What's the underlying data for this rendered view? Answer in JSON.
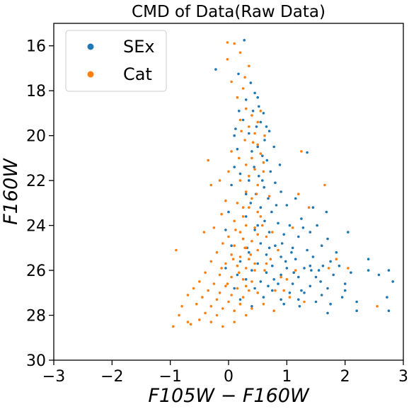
{
  "chart_data": {
    "type": "scatter",
    "title": "CMD of Data(Raw Data)",
    "xlabel": "F105W − F160W",
    "ylabel": "F160W",
    "xlim": [
      -3,
      3
    ],
    "ylim": [
      30,
      15
    ],
    "y_inverted": true,
    "xticks": [
      "−3",
      "−2",
      "−1",
      "0",
      "1",
      "2",
      "3"
    ],
    "xtick_values": [
      -3,
      -2,
      -1,
      0,
      1,
      2,
      3
    ],
    "yticks": [
      "16",
      "18",
      "20",
      "22",
      "24",
      "26",
      "28",
      "30"
    ],
    "ytick_values": [
      16,
      18,
      20,
      22,
      24,
      26,
      28,
      30
    ],
    "grid": false,
    "legend_position": "upper-left",
    "series": [
      {
        "name": "SEx",
        "color": "#1f77b4",
        "points": [
          [
            0.27,
            15.75
          ],
          [
            -0.22,
            17.05
          ],
          [
            0.17,
            17.25
          ],
          [
            0.38,
            17.65
          ],
          [
            0.45,
            18.1
          ],
          [
            0.3,
            18.4
          ],
          [
            0.42,
            18.9
          ],
          [
            0.52,
            18.7
          ],
          [
            0.6,
            19.0
          ],
          [
            0.55,
            19.4
          ],
          [
            0.48,
            19.6
          ],
          [
            0.35,
            19.9
          ],
          [
            0.62,
            20.2
          ],
          [
            0.7,
            19.8
          ],
          [
            0.5,
            20.5
          ],
          [
            0.4,
            20.7
          ],
          [
            0.58,
            20.9
          ],
          [
            0.66,
            21.1
          ],
          [
            0.44,
            21.4
          ],
          [
            0.72,
            21.6
          ],
          [
            0.52,
            21.8
          ],
          [
            0.35,
            22.0
          ],
          [
            0.61,
            22.3
          ],
          [
            0.8,
            22.1
          ],
          [
            0.47,
            22.6
          ],
          [
            0.68,
            22.8
          ],
          [
            0.9,
            22.5
          ],
          [
            0.38,
            23.0
          ],
          [
            0.55,
            23.2
          ],
          [
            0.74,
            23.4
          ],
          [
            1.0,
            23.1
          ],
          [
            1.15,
            22.8
          ],
          [
            0.3,
            23.6
          ],
          [
            0.62,
            23.8
          ],
          [
            0.85,
            23.9
          ],
          [
            1.05,
            24.0
          ],
          [
            1.25,
            23.7
          ],
          [
            0.45,
            24.2
          ],
          [
            0.7,
            24.3
          ],
          [
            0.95,
            24.4
          ],
          [
            1.2,
            24.5
          ],
          [
            1.4,
            24.3
          ],
          [
            0.25,
            24.6
          ],
          [
            0.55,
            24.8
          ],
          [
            0.8,
            24.9
          ],
          [
            1.1,
            25.0
          ],
          [
            1.35,
            25.1
          ],
          [
            1.6,
            24.9
          ],
          [
            0.35,
            25.2
          ],
          [
            0.65,
            25.3
          ],
          [
            0.9,
            25.4
          ],
          [
            1.15,
            25.5
          ],
          [
            1.45,
            25.4
          ],
          [
            1.75,
            25.6
          ],
          [
            0.2,
            25.6
          ],
          [
            0.5,
            25.7
          ],
          [
            0.75,
            25.8
          ],
          [
            1.0,
            25.9
          ],
          [
            1.3,
            25.9
          ],
          [
            1.55,
            26.0
          ],
          [
            1.9,
            25.8
          ],
          [
            0.4,
            26.0
          ],
          [
            0.65,
            26.1
          ],
          [
            0.9,
            26.2
          ],
          [
            1.2,
            26.3
          ],
          [
            1.5,
            26.3
          ],
          [
            1.8,
            26.2
          ],
          [
            2.1,
            26.1
          ],
          [
            0.3,
            26.4
          ],
          [
            0.55,
            26.5
          ],
          [
            0.85,
            26.6
          ],
          [
            1.1,
            26.6
          ],
          [
            1.4,
            26.7
          ],
          [
            1.7,
            26.8
          ],
          [
            2.0,
            26.6
          ],
          [
            2.4,
            26.0
          ],
          [
            0.45,
            26.8
          ],
          [
            0.75,
            26.9
          ],
          [
            1.05,
            27.0
          ],
          [
            1.3,
            27.0
          ],
          [
            1.6,
            27.1
          ],
          [
            1.95,
            27.2
          ],
          [
            0.6,
            27.2
          ],
          [
            0.9,
            27.3
          ],
          [
            1.2,
            27.3
          ],
          [
            1.5,
            27.4
          ],
          [
            1.75,
            27.5
          ],
          [
            2.2,
            27.4
          ],
          [
            2.4,
            25.5
          ],
          [
            2.75,
            26.0
          ],
          [
            2.82,
            26.5
          ],
          [
            2.72,
            27.2
          ],
          [
            2.75,
            27.8
          ],
          [
            2.58,
            26.2
          ],
          [
            2.2,
            27.8
          ],
          [
            1.7,
            27.9
          ],
          [
            1.4,
            25.8
          ],
          [
            1.25,
            26.9
          ],
          [
            0.95,
            27.5
          ],
          [
            0.7,
            25.0
          ],
          [
            0.15,
            26.2
          ],
          [
            -0.05,
            25.9
          ],
          [
            0.05,
            24.9
          ],
          [
            0.1,
            26.8
          ],
          [
            0.2,
            27.3
          ],
          [
            0.5,
            24.0
          ],
          [
            0.3,
            22.6
          ],
          [
            0.2,
            21.7
          ],
          [
            0.15,
            20.6
          ],
          [
            0.1,
            21.4
          ],
          [
            0.78,
            20.5
          ],
          [
            0.88,
            21.3
          ],
          [
            1.35,
            20.75
          ],
          [
            1.45,
            23.2
          ],
          [
            1.52,
            24.0
          ],
          [
            1.7,
            24.6
          ],
          [
            1.85,
            25.2
          ],
          [
            2.05,
            24.3
          ],
          [
            1.62,
            25.8
          ],
          [
            2.0,
            26.9
          ],
          [
            0.0,
            23.4
          ],
          [
            -0.05,
            24.2
          ],
          [
            0.05,
            22.2
          ],
          [
            0.25,
            19.3
          ],
          [
            0.1,
            20.0
          ],
          [
            0.65,
            19.6
          ],
          [
            0.82,
            23.1
          ],
          [
            1.08,
            25.2
          ],
          [
            1.22,
            27.6
          ],
          [
            0.4,
            27.6
          ],
          [
            0.58,
            22.0
          ],
          [
            0.92,
            24.8
          ],
          [
            1.28,
            24.1
          ],
          [
            1.68,
            23.4
          ],
          [
            1.42,
            26.0
          ],
          [
            1.58,
            26.5
          ],
          [
            0.18,
            18.9
          ],
          [
            0.5,
            18.3
          ],
          [
            0.12,
            19.7
          ],
          [
            0.78,
            26.4
          ],
          [
            1.12,
            26.1
          ],
          [
            0.32,
            25.0
          ],
          [
            0.68,
            26.7
          ],
          [
            0.98,
            25.6
          ]
        ]
      },
      {
        "name": "Cat",
        "color": "#ff7f0e",
        "points": [
          [
            -0.02,
            15.85
          ],
          [
            0.1,
            15.9
          ],
          [
            -0.02,
            16.6
          ],
          [
            0.2,
            16.3
          ],
          [
            0.05,
            17.6
          ],
          [
            0.25,
            17.9
          ],
          [
            0.3,
            18.8
          ],
          [
            0.4,
            19.1
          ],
          [
            0.2,
            19.3
          ],
          [
            0.35,
            19.6
          ],
          [
            0.5,
            19.4
          ],
          [
            0.45,
            19.9
          ],
          [
            0.28,
            20.2
          ],
          [
            0.5,
            20.4
          ],
          [
            0.55,
            20.8
          ],
          [
            0.4,
            21.0
          ],
          [
            0.3,
            21.3
          ],
          [
            0.45,
            21.5
          ],
          [
            0.6,
            21.2
          ],
          [
            0.35,
            21.8
          ],
          [
            0.2,
            22.0
          ],
          [
            0.5,
            22.2
          ],
          [
            0.3,
            22.5
          ],
          [
            0.4,
            22.8
          ],
          [
            0.15,
            23.0
          ],
          [
            0.35,
            23.2
          ],
          [
            0.5,
            23.4
          ],
          [
            0.25,
            23.6
          ],
          [
            0.1,
            23.8
          ],
          [
            0.3,
            24.0
          ],
          [
            0.45,
            24.1
          ],
          [
            0.2,
            24.3
          ],
          [
            0.0,
            24.5
          ],
          [
            0.25,
            24.6
          ],
          [
            0.4,
            24.7
          ],
          [
            -0.1,
            24.8
          ],
          [
            0.1,
            24.9
          ],
          [
            0.3,
            25.0
          ],
          [
            0.5,
            25.1
          ],
          [
            -0.2,
            25.2
          ],
          [
            0.05,
            25.3
          ],
          [
            0.2,
            25.4
          ],
          [
            0.35,
            25.5
          ],
          [
            -0.3,
            25.6
          ],
          [
            -0.05,
            25.7
          ],
          [
            0.15,
            25.8
          ],
          [
            0.3,
            25.9
          ],
          [
            0.45,
            26.0
          ],
          [
            -0.4,
            26.1
          ],
          [
            -0.15,
            26.2
          ],
          [
            0.05,
            26.3
          ],
          [
            0.25,
            26.4
          ],
          [
            0.4,
            26.5
          ],
          [
            -0.5,
            26.5
          ],
          [
            -0.25,
            26.6
          ],
          [
            -0.05,
            26.7
          ],
          [
            0.15,
            26.8
          ],
          [
            0.35,
            26.9
          ],
          [
            -0.6,
            26.8
          ],
          [
            -0.35,
            26.9
          ],
          [
            -0.15,
            27.0
          ],
          [
            0.05,
            27.1
          ],
          [
            0.25,
            27.2
          ],
          [
            0.5,
            27.0
          ],
          [
            -0.7,
            27.1
          ],
          [
            -0.45,
            27.2
          ],
          [
            -0.2,
            27.3
          ],
          [
            0.0,
            27.4
          ],
          [
            0.2,
            27.5
          ],
          [
            -0.55,
            27.5
          ],
          [
            -0.3,
            27.6
          ],
          [
            -0.1,
            27.7
          ],
          [
            0.1,
            27.8
          ],
          [
            -0.4,
            27.9
          ],
          [
            -0.2,
            28.0
          ],
          [
            -0.5,
            28.2
          ],
          [
            -0.7,
            28.3
          ],
          [
            -0.95,
            28.5
          ],
          [
            -0.85,
            28.0
          ],
          [
            -0.8,
            27.6
          ],
          [
            -0.65,
            28.4
          ],
          [
            -0.3,
            28.3
          ],
          [
            -0.9,
            25.1
          ],
          [
            -0.42,
            24.3
          ],
          [
            -0.35,
            21.1
          ],
          [
            -0.3,
            22.2
          ],
          [
            -0.15,
            22.0
          ],
          [
            0.6,
            21.6
          ],
          [
            0.7,
            22.7
          ],
          [
            0.55,
            23.6
          ],
          [
            0.75,
            24.3
          ],
          [
            0.85,
            25.1
          ],
          [
            0.65,
            25.7
          ],
          [
            0.9,
            26.3
          ],
          [
            0.8,
            26.9
          ],
          [
            1.05,
            27.2
          ],
          [
            1.3,
            27.4
          ],
          [
            1.2,
            22.6
          ],
          [
            1.25,
            20.7
          ],
          [
            1.65,
            22.2
          ],
          [
            1.72,
            25.9
          ],
          [
            1.85,
            25.5
          ],
          [
            2.05,
            25.9
          ],
          [
            2.55,
            27.6
          ],
          [
            1.1,
            24.1
          ],
          [
            1.38,
            23.2
          ],
          [
            0.35,
            16.9
          ],
          [
            0.28,
            17.4
          ],
          [
            0.15,
            18.3
          ],
          [
            0.62,
            20.0
          ],
          [
            0.05,
            20.7
          ],
          [
            0.0,
            21.6
          ],
          [
            -0.05,
            22.9
          ],
          [
            -0.12,
            23.5
          ],
          [
            -0.25,
            24.1
          ],
          [
            0.65,
            24.5
          ],
          [
            0.72,
            25.5
          ],
          [
            1.0,
            26.4
          ],
          [
            0.95,
            26.9
          ],
          [
            0.4,
            27.7
          ],
          [
            0.3,
            28.0
          ],
          [
            0.1,
            28.3
          ],
          [
            -0.1,
            28.5
          ],
          [
            0.6,
            27.5
          ],
          [
            0.78,
            27.8
          ],
          [
            1.15,
            26.0
          ],
          [
            0.22,
            19.8
          ],
          [
            0.55,
            18.9
          ],
          [
            0.42,
            20.3
          ],
          [
            0.18,
            21.0
          ],
          [
            0.48,
            22.6
          ],
          [
            0.25,
            23.2
          ],
          [
            0.58,
            24.0
          ],
          [
            0.12,
            24.2
          ],
          [
            0.38,
            25.3
          ],
          [
            0.18,
            26.1
          ],
          [
            -0.02,
            26.6
          ],
          [
            0.3,
            26.7
          ],
          [
            0.45,
            25.7
          ],
          [
            0.08,
            25.5
          ],
          [
            -0.12,
            25.9
          ],
          [
            0.28,
            25.0
          ],
          [
            0.5,
            24.4
          ],
          [
            0.62,
            26.0
          ]
        ]
      }
    ]
  }
}
